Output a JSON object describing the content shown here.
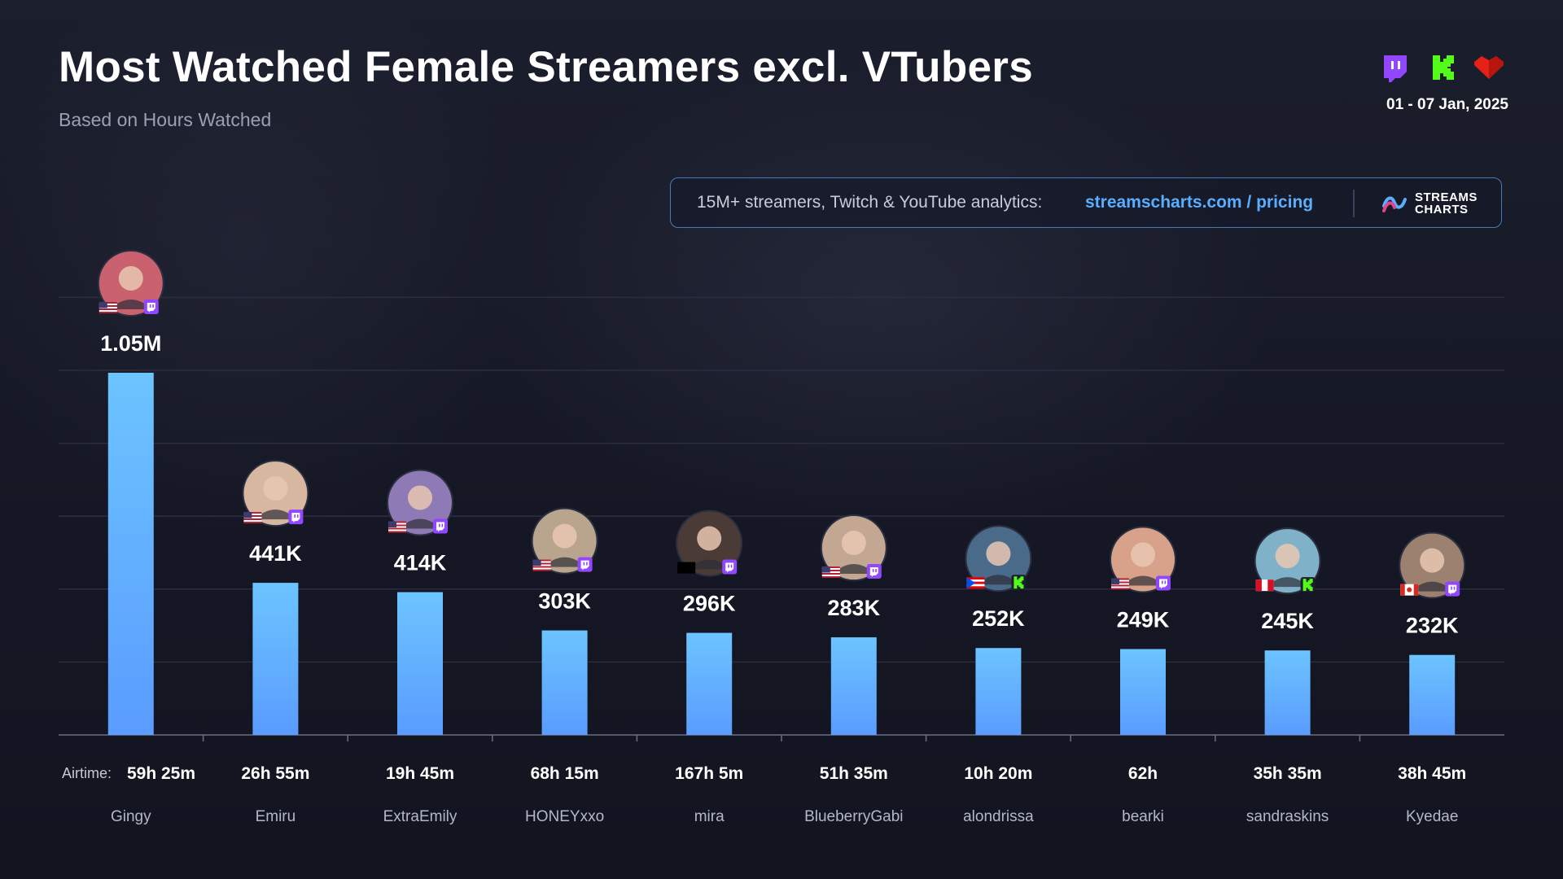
{
  "header": {
    "title": "Most Watched Female Streamers excl. VTubers",
    "subtitle": "Based on Hours Watched",
    "date_range": "01 - 07 Jan, 2025",
    "platform_icons": [
      "twitch-icon",
      "kick-icon",
      "youtube-icon"
    ]
  },
  "promo": {
    "text": "15M+ streamers, Twitch & YouTube analytics:",
    "link": "streamscharts.com / pricing",
    "logo_line1": "STREAMS",
    "logo_line2": "CHARTS"
  },
  "colors": {
    "bar_top": "#6cc4ff",
    "bar_bottom": "#5a9cff",
    "twitch": "#9146ff",
    "kick": "#53fc18",
    "youtube": "#e62117",
    "accent": "#5aaeff"
  },
  "chart_data": {
    "type": "bar",
    "title": "Most Watched Female Streamers excl. VTubers",
    "subtitle": "Based on Hours Watched",
    "ylim": [
      0,
      1200000
    ],
    "grid": true,
    "airtime_label": "Airtime:",
    "categories": [
      "Gingy",
      "Emiru",
      "ExtraEmily",
      "HONEYxxo",
      "mira",
      "BlueberryGabi",
      "alondrissa",
      "bearki",
      "sandraskins",
      "Kyedae"
    ],
    "values": [
      1050000,
      441000,
      414000,
      303000,
      296000,
      283000,
      252000,
      249000,
      245000,
      232000
    ],
    "value_labels": [
      "1.05M",
      "441K",
      "414K",
      "303K",
      "296K",
      "283K",
      "252K",
      "249K",
      "245K",
      "232K"
    ],
    "airtime": [
      "59h 25m",
      "26h 55m",
      "19h 45m",
      "68h 15m",
      "167h 5m",
      "51h 35m",
      "10h 20m",
      "62h",
      "35h 35m",
      "38h 45m"
    ],
    "platform": [
      "twitch",
      "twitch",
      "twitch",
      "twitch",
      "twitch",
      "twitch",
      "kick",
      "twitch",
      "kick",
      "twitch"
    ],
    "country": [
      "us",
      "us",
      "us",
      "us",
      "unknown",
      "us",
      "pr",
      "us",
      "pe",
      "ca"
    ]
  }
}
